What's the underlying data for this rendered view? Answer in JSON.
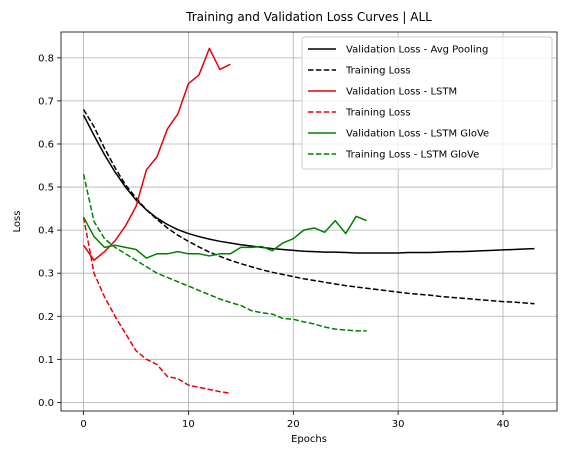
{
  "chart_data": {
    "type": "line",
    "title": "Training and Validation Loss Curves | ALL",
    "xlabel": "Epochs",
    "ylabel": "Loss",
    "xlim": [
      -2.15,
      45.15
    ],
    "ylim": [
      -0.02,
      0.86
    ],
    "xticks": [
      0,
      10,
      20,
      30,
      40
    ],
    "yticks": [
      0.0,
      0.1,
      0.2,
      0.3,
      0.4,
      0.5,
      0.6,
      0.7,
      0.8
    ],
    "ytick_labels": [
      "0.0",
      "0.1",
      "0.2",
      "0.3",
      "0.4",
      "0.5",
      "0.6",
      "0.7",
      "0.8"
    ],
    "grid": true,
    "legend_position": "top-right",
    "series": [
      {
        "name": "Validation Loss - Avg Pooling",
        "color": "#000000",
        "dash": "solid",
        "y": [
          0.667,
          0.62,
          0.575,
          0.535,
          0.5,
          0.47,
          0.447,
          0.428,
          0.413,
          0.401,
          0.392,
          0.385,
          0.379,
          0.374,
          0.37,
          0.366,
          0.363,
          0.36,
          0.357,
          0.355,
          0.353,
          0.351,
          0.35,
          0.349,
          0.349,
          0.348,
          0.347,
          0.347,
          0.347,
          0.347,
          0.347,
          0.348,
          0.348,
          0.348,
          0.349,
          0.35,
          0.35,
          0.351,
          0.352,
          0.353,
          0.354,
          0.355,
          0.356,
          0.357
        ]
      },
      {
        "name": "Training Loss",
        "color": "#000000",
        "dash": "dashed",
        "y": [
          0.68,
          0.64,
          0.59,
          0.545,
          0.505,
          0.475,
          0.447,
          0.425,
          0.405,
          0.388,
          0.374,
          0.361,
          0.349,
          0.339,
          0.33,
          0.322,
          0.315,
          0.308,
          0.302,
          0.297,
          0.292,
          0.287,
          0.283,
          0.279,
          0.275,
          0.271,
          0.268,
          0.265,
          0.262,
          0.259,
          0.256,
          0.253,
          0.251,
          0.249,
          0.246,
          0.244,
          0.242,
          0.24,
          0.238,
          0.236,
          0.234,
          0.233,
          0.231,
          0.229
        ]
      },
      {
        "name": "Validation Loss - LSTM",
        "color": "#e8000b",
        "dash": "solid",
        "y": [
          0.365,
          0.33,
          0.35,
          0.375,
          0.41,
          0.455,
          0.54,
          0.57,
          0.635,
          0.67,
          0.74,
          0.76,
          0.822,
          0.773,
          0.785
        ]
      },
      {
        "name": "Training Loss",
        "color": "#e8000b",
        "dash": "dashed",
        "y": [
          0.43,
          0.3,
          0.245,
          0.2,
          0.16,
          0.12,
          0.1,
          0.088,
          0.06,
          0.055,
          0.04,
          0.035,
          0.03,
          0.025,
          0.021
        ]
      },
      {
        "name": "Validation Loss - LSTM GloVe",
        "color": "#008000",
        "dash": "solid",
        "y": [
          0.43,
          0.385,
          0.36,
          0.365,
          0.36,
          0.355,
          0.335,
          0.345,
          0.345,
          0.35,
          0.345,
          0.345,
          0.34,
          0.345,
          0.345,
          0.36,
          0.36,
          0.362,
          0.352,
          0.37,
          0.38,
          0.4,
          0.405,
          0.395,
          0.422,
          0.392,
          0.432,
          0.422
        ]
      },
      {
        "name": "Training Loss - LSTM GloVe",
        "color": "#008000",
        "dash": "dashed",
        "y": [
          0.53,
          0.42,
          0.38,
          0.36,
          0.345,
          0.33,
          0.315,
          0.3,
          0.29,
          0.28,
          0.27,
          0.26,
          0.25,
          0.24,
          0.232,
          0.225,
          0.213,
          0.208,
          0.205,
          0.195,
          0.193,
          0.187,
          0.182,
          0.175,
          0.17,
          0.168,
          0.166,
          0.166
        ]
      }
    ]
  }
}
